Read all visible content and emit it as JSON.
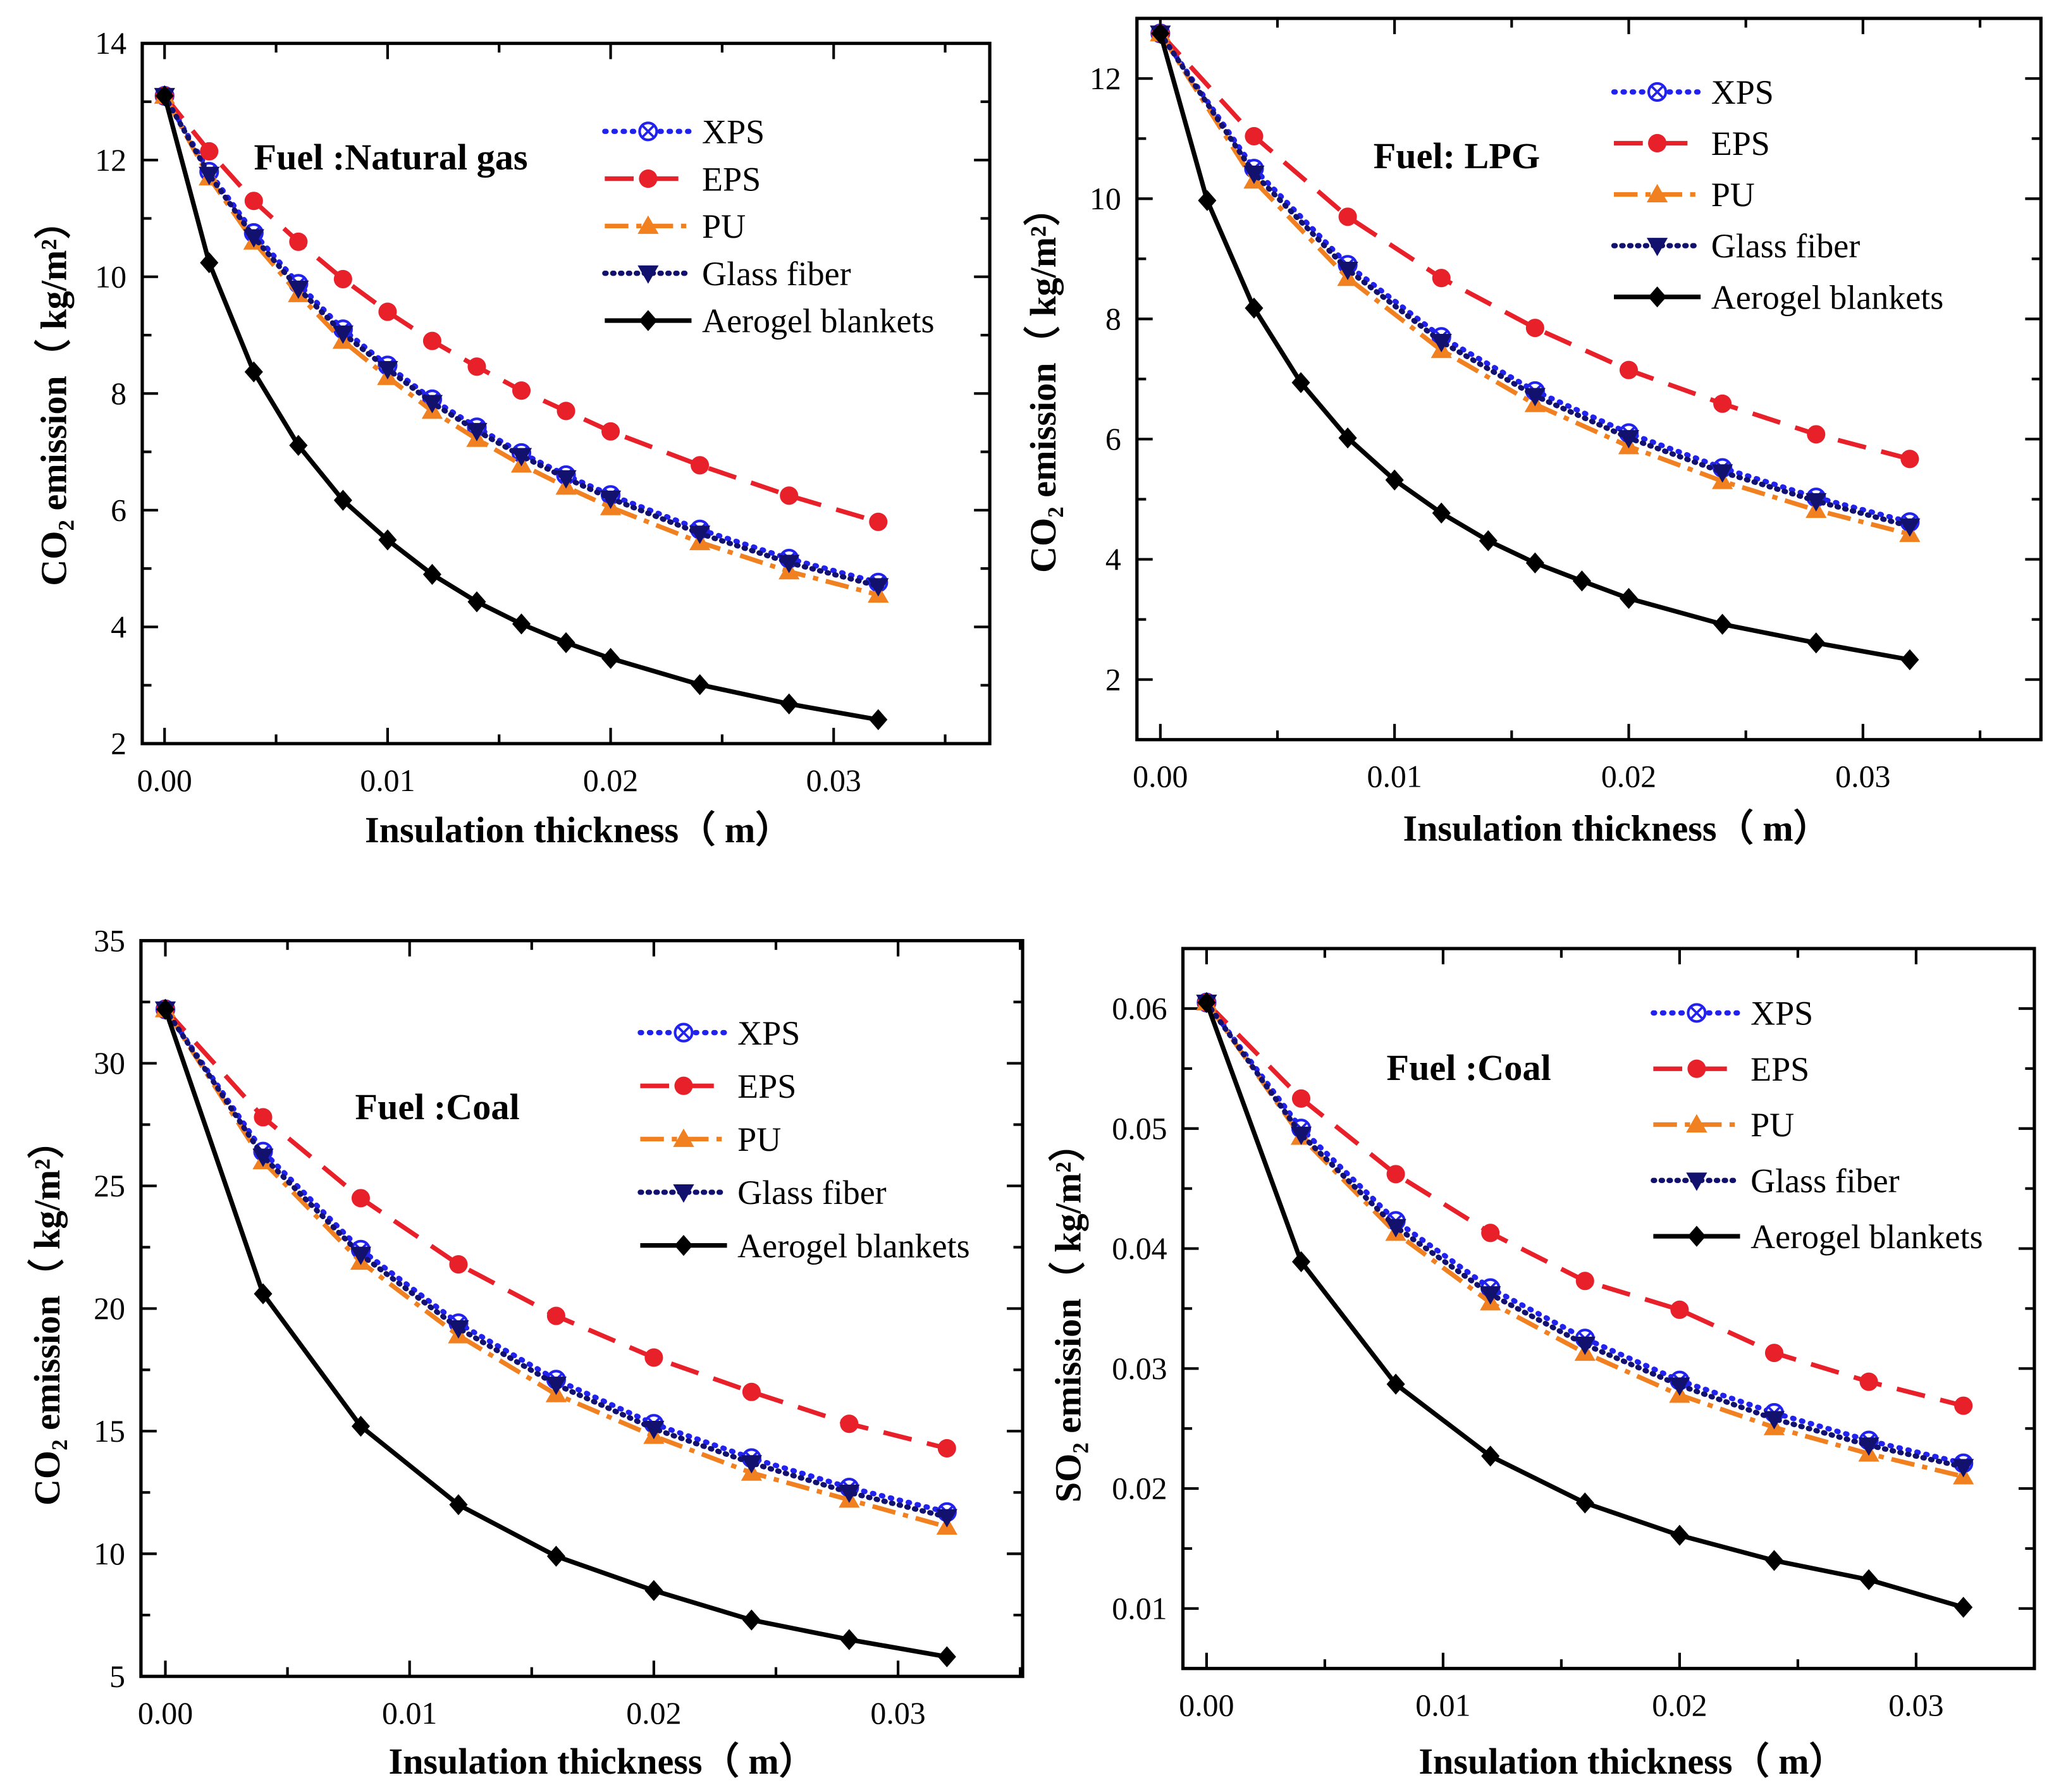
{
  "chart_data": [
    {
      "type": "line",
      "title": "Fuel :Natural gas",
      "xlabel": "Insulation thickness（ m）",
      "ylabel": "CO₂ emission（ kg/m²）",
      "xlim": [
        -0.001,
        0.037
      ],
      "ylim": [
        2,
        14
      ],
      "xticks": [
        0,
        0.01,
        0.02,
        0.03
      ],
      "xtick_labels": [
        "0.00",
        "0.01",
        "0.02",
        "0.03"
      ],
      "yticks": [
        2,
        4,
        6,
        8,
        10,
        12,
        14
      ],
      "ytick_labels": [
        "2",
        "4",
        "6",
        "8",
        "10",
        "12",
        "14"
      ],
      "legend_position": "top-right",
      "series": [
        {
          "name": "XPS",
          "x": [
            0,
            0.002,
            0.004,
            0.006,
            0.008,
            0.01,
            0.012,
            0.014,
            0.016,
            0.018,
            0.02,
            0.024,
            0.028,
            0.032
          ],
          "y": [
            13.1,
            11.8,
            10.75,
            9.88,
            9.1,
            8.48,
            7.9,
            7.42,
            6.98,
            6.6,
            6.26,
            5.67,
            5.17,
            4.76
          ]
        },
        {
          "name": "EPS",
          "x": [
            0,
            0.002,
            0.004,
            0.006,
            0.008,
            0.01,
            0.012,
            0.014,
            0.016,
            0.018,
            0.02,
            0.024,
            0.028,
            0.032
          ],
          "y": [
            13.1,
            12.15,
            11.3,
            10.6,
            9.96,
            9.4,
            8.9,
            8.46,
            8.05,
            7.7,
            7.35,
            6.77,
            6.25,
            5.8
          ]
        },
        {
          "name": "PU",
          "x": [
            0,
            0.002,
            0.004,
            0.006,
            0.008,
            0.01,
            0.012,
            0.014,
            0.016,
            0.018,
            0.02,
            0.024,
            0.028,
            0.032
          ],
          "y": [
            13.1,
            11.7,
            10.6,
            9.7,
            8.9,
            8.28,
            7.7,
            7.22,
            6.78,
            6.4,
            6.05,
            5.45,
            4.95,
            4.55
          ]
        },
        {
          "name": "Glass fiber",
          "x": [
            0,
            0.002,
            0.004,
            0.006,
            0.008,
            0.01,
            0.012,
            0.014,
            0.016,
            0.018,
            0.02,
            0.024,
            0.028,
            0.032
          ],
          "y": [
            13.1,
            11.75,
            10.68,
            9.8,
            9.03,
            8.42,
            7.84,
            7.36,
            6.93,
            6.55,
            6.2,
            5.6,
            5.1,
            4.7
          ]
        },
        {
          "name": "Aerogel blankets",
          "x": [
            0,
            0.002,
            0.004,
            0.006,
            0.008,
            0.01,
            0.012,
            0.014,
            0.016,
            0.018,
            0.02,
            0.024,
            0.028,
            0.032
          ],
          "y": [
            13.1,
            10.24,
            8.37,
            7.11,
            6.17,
            5.49,
            4.9,
            4.43,
            4.05,
            3.73,
            3.46,
            3.01,
            2.68,
            2.41
          ]
        }
      ]
    },
    {
      "type": "line",
      "title": "Fuel: LPG",
      "xlabel": "Insulation thickness（ m）",
      "ylabel": "CO₂ emission（ kg/m²）",
      "xlim": [
        -0.001,
        0.0376
      ],
      "ylim": [
        1,
        13
      ],
      "xticks": [
        0,
        0.01,
        0.02,
        0.03
      ],
      "xtick_labels": [
        "0.00",
        "0.01",
        "0.02",
        "0.03"
      ],
      "yticks": [
        2,
        4,
        6,
        8,
        10,
        12
      ],
      "ytick_labels": [
        "2",
        "4",
        "6",
        "8",
        "10",
        "12"
      ],
      "legend_position": "top-right",
      "series": [
        {
          "name": "XPS",
          "x": [
            0,
            0.004,
            0.008,
            0.012,
            0.016,
            0.02,
            0.024,
            0.028,
            0.032
          ],
          "y": [
            12.75,
            10.5,
            8.9,
            7.7,
            6.8,
            6.1,
            5.52,
            5.03,
            4.62
          ]
        },
        {
          "name": "EPS",
          "x": [
            0,
            0.004,
            0.008,
            0.012,
            0.016,
            0.02,
            0.024,
            0.028,
            0.032
          ],
          "y": [
            12.75,
            11.04,
            9.7,
            8.68,
            7.85,
            7.15,
            6.59,
            6.08,
            5.67
          ]
        },
        {
          "name": "PU",
          "x": [
            0,
            0.004,
            0.008,
            0.012,
            0.016,
            0.02,
            0.024,
            0.028,
            0.032
          ],
          "y": [
            12.75,
            10.3,
            8.68,
            7.48,
            6.58,
            5.88,
            5.3,
            4.82,
            4.42
          ]
        },
        {
          "name": "Glass fiber",
          "x": [
            0,
            0.004,
            0.008,
            0.012,
            0.016,
            0.02,
            0.024,
            0.028,
            0.032
          ],
          "y": [
            12.75,
            10.42,
            8.82,
            7.62,
            6.72,
            6.02,
            5.45,
            4.97,
            4.55
          ]
        },
        {
          "name": "Aerogel blankets",
          "x": [
            0,
            0.002,
            0.004,
            0.006,
            0.008,
            0.01,
            0.012,
            0.014,
            0.016,
            0.018,
            0.02,
            0.024,
            0.028,
            0.032
          ],
          "y": [
            12.75,
            9.97,
            8.18,
            6.94,
            6.02,
            5.32,
            4.77,
            4.31,
            3.94,
            3.64,
            3.35,
            2.92,
            2.61,
            2.33
          ]
        }
      ]
    },
    {
      "type": "line",
      "title": "Fuel :Coal",
      "xlabel": "Insulation thickness（ m）",
      "ylabel": "CO₂ emission（ kg/m²）",
      "xlim": [
        -0.001,
        0.0351
      ],
      "ylim": [
        5,
        35
      ],
      "xticks": [
        0,
        0.01,
        0.02,
        0.03
      ],
      "xtick_labels": [
        "0.00",
        "0.01",
        "0.02",
        "0.03"
      ],
      "yticks": [
        5,
        10,
        15,
        20,
        25,
        30,
        35
      ],
      "ytick_labels": [
        "5",
        "10",
        "15",
        "20",
        "25",
        "30",
        "35"
      ],
      "legend_position": "top-right",
      "series": [
        {
          "name": "XPS",
          "x": [
            0,
            0.004,
            0.008,
            0.012,
            0.016,
            0.02,
            0.024,
            0.028,
            0.032
          ],
          "y": [
            32.2,
            26.4,
            22.4,
            19.4,
            17.1,
            15.3,
            13.9,
            12.7,
            11.7
          ]
        },
        {
          "name": "EPS",
          "x": [
            0,
            0.004,
            0.008,
            0.012,
            0.016,
            0.02,
            0.024,
            0.028,
            0.032
          ],
          "y": [
            32.2,
            27.8,
            24.5,
            21.8,
            19.7,
            18.0,
            16.6,
            15.3,
            14.3
          ]
        },
        {
          "name": "PU",
          "x": [
            0,
            0.004,
            0.008,
            0.012,
            0.016,
            0.02,
            0.024,
            0.028,
            0.032
          ],
          "y": [
            32.2,
            26.0,
            21.9,
            18.9,
            16.5,
            14.8,
            13.3,
            12.2,
            11.1
          ]
        },
        {
          "name": "Glass fiber",
          "x": [
            0,
            0.004,
            0.008,
            0.012,
            0.016,
            0.02,
            0.024,
            0.028,
            0.032
          ],
          "y": [
            32.2,
            26.2,
            22.2,
            19.2,
            16.9,
            15.1,
            13.7,
            12.5,
            11.5
          ]
        },
        {
          "name": "Aerogel blankets",
          "x": [
            0,
            0.004,
            0.008,
            0.012,
            0.016,
            0.02,
            0.024,
            0.028,
            0.032
          ],
          "y": [
            32.2,
            20.6,
            15.2,
            12.0,
            9.9,
            8.5,
            7.3,
            6.5,
            5.8
          ]
        }
      ]
    },
    {
      "type": "line",
      "title": "Fuel :Coal",
      "xlabel": "Insulation thickness（ m）",
      "ylabel": "SO₂ emission（ kg/m²）",
      "xlim": [
        -0.001,
        0.035
      ],
      "ylim": [
        0.005,
        0.065
      ],
      "xticks": [
        0,
        0.01,
        0.02,
        0.03
      ],
      "xtick_labels": [
        "0.00",
        "0.01",
        "0.02",
        "0.03"
      ],
      "yticks": [
        0.01,
        0.02,
        0.03,
        0.04,
        0.05,
        0.06
      ],
      "ytick_labels": [
        "0.01",
        "0.02",
        "0.03",
        "0.04",
        "0.05",
        "0.06"
      ],
      "legend_position": "top-right",
      "series": [
        {
          "name": "XPS",
          "x": [
            0,
            0.004,
            0.008,
            0.012,
            0.016,
            0.02,
            0.024,
            0.028,
            0.032
          ],
          "y": [
            0.0605,
            0.05,
            0.0423,
            0.0367,
            0.0325,
            0.029,
            0.0263,
            0.024,
            0.0221
          ]
        },
        {
          "name": "EPS",
          "x": [
            0,
            0.004,
            0.008,
            0.012,
            0.016,
            0.02,
            0.024,
            0.028,
            0.032
          ],
          "y": [
            0.0605,
            0.0525,
            0.0462,
            0.0413,
            0.0373,
            0.0349,
            0.0313,
            0.0289,
            0.0269
          ]
        },
        {
          "name": "PU",
          "x": [
            0,
            0.004,
            0.008,
            0.012,
            0.016,
            0.02,
            0.024,
            0.028,
            0.032
          ],
          "y": [
            0.0605,
            0.0493,
            0.0413,
            0.0355,
            0.0313,
            0.0278,
            0.0251,
            0.0229,
            0.021
          ]
        },
        {
          "name": "Glass fiber",
          "x": [
            0,
            0.004,
            0.008,
            0.012,
            0.016,
            0.02,
            0.024,
            0.028,
            0.032
          ],
          "y": [
            0.0605,
            0.0495,
            0.0418,
            0.0362,
            0.032,
            0.0286,
            0.0258,
            0.0236,
            0.0218
          ]
        },
        {
          "name": "Aerogel blankets",
          "x": [
            0,
            0.004,
            0.008,
            0.012,
            0.016,
            0.02,
            0.024,
            0.028,
            0.032
          ],
          "y": [
            0.0605,
            0.0389,
            0.0287,
            0.0227,
            0.0188,
            0.0161,
            0.014,
            0.0124,
            0.0101
          ]
        }
      ]
    }
  ],
  "colors": {
    "XPS": "#2222ee",
    "EPS": "#e8202a",
    "PU": "#f08020",
    "Glass fiber": "#12126e",
    "Aerogel blankets": "#000000"
  }
}
